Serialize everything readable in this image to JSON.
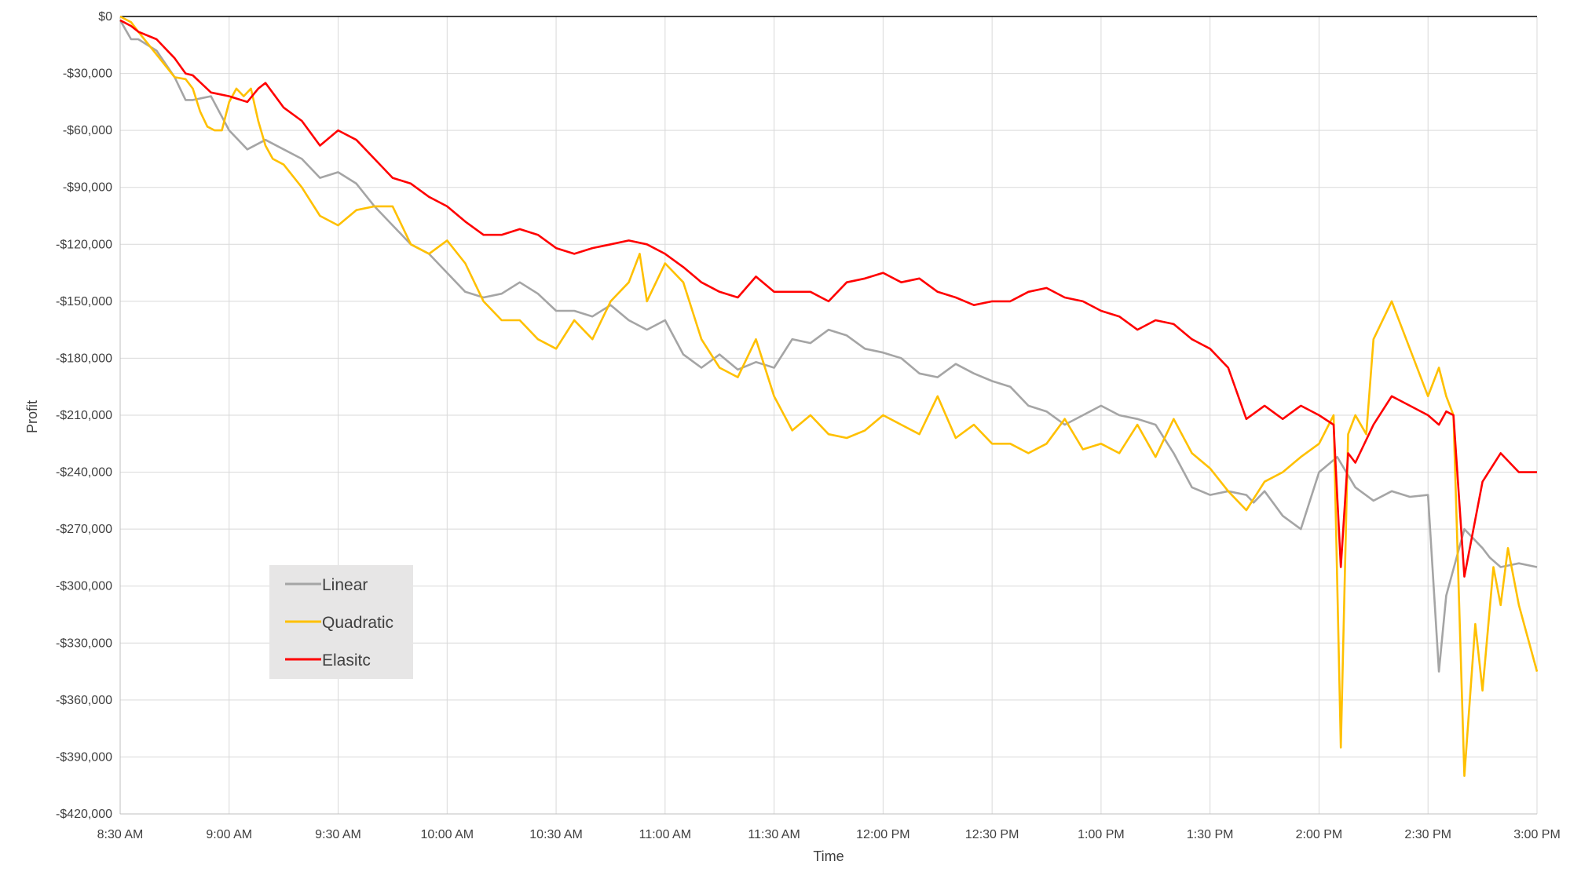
{
  "chart_data": {
    "type": "line",
    "title": "",
    "xlabel": "Time",
    "ylabel": "Profit",
    "ylim": [
      -420000,
      0
    ],
    "y_tick_values": [
      0,
      -30000,
      -60000,
      -90000,
      -120000,
      -150000,
      -180000,
      -210000,
      -240000,
      -270000,
      -300000,
      -330000,
      -360000,
      -390000,
      -420000
    ],
    "y_tick_labels": [
      "$0",
      "-$30,000",
      "-$60,000",
      "-$90,000",
      "-$120,000",
      "-$150,000",
      "-$180,000",
      "-$210,000",
      "-$240,000",
      "-$270,000",
      "-$300,000",
      "-$330,000",
      "-$360,000",
      "-$390,000",
      "-$420,000"
    ],
    "x_tick_labels": [
      "8:30 AM",
      "9:00 AM",
      "9:30 AM",
      "10:00 AM",
      "10:30 AM",
      "11:00 AM",
      "11:30 AM",
      "12:00 PM",
      "12:30 PM",
      "1:00 PM",
      "1:30 PM",
      "2:00 PM",
      "2:30 PM",
      "3:00 PM"
    ],
    "x_unit": "minutes after 8:30 AM",
    "xlim": [
      0,
      390
    ],
    "grid": true,
    "legend_position": "bottom-left",
    "series": [
      {
        "name": "Linear",
        "color": "#A5A5A5",
        "x": [
          0,
          3,
          5,
          10,
          15,
          18,
          20,
          25,
          30,
          35,
          40,
          45,
          50,
          55,
          60,
          65,
          70,
          75,
          80,
          85,
          90,
          95,
          100,
          105,
          110,
          115,
          120,
          125,
          130,
          135,
          140,
          145,
          150,
          155,
          160,
          165,
          170,
          175,
          180,
          185,
          190,
          195,
          200,
          205,
          210,
          215,
          220,
          225,
          230,
          235,
          240,
          245,
          250,
          255,
          260,
          265,
          270,
          275,
          280,
          285,
          290,
          295,
          300,
          305,
          310,
          312,
          315,
          320,
          325,
          330,
          335,
          340,
          345,
          350,
          355,
          360,
          363,
          365,
          370,
          375,
          377,
          380,
          385,
          390
        ],
        "values": [
          -2000,
          -12000,
          -12000,
          -18000,
          -32000,
          -44000,
          -44000,
          -42000,
          -60000,
          -70000,
          -65000,
          -70000,
          -75000,
          -85000,
          -82000,
          -88000,
          -100000,
          -110000,
          -120000,
          -125000,
          -135000,
          -145000,
          -148000,
          -146000,
          -140000,
          -146000,
          -155000,
          -155000,
          -158000,
          -152000,
          -160000,
          -165000,
          -160000,
          -178000,
          -185000,
          -178000,
          -186000,
          -182000,
          -185000,
          -170000,
          -172000,
          -165000,
          -168000,
          -175000,
          -177000,
          -180000,
          -188000,
          -190000,
          -183000,
          -188000,
          -192000,
          -195000,
          -205000,
          -208000,
          -215000,
          -210000,
          -205000,
          -210000,
          -212000,
          -215000,
          -230000,
          -248000,
          -252000,
          -250000,
          -252000,
          -256000,
          -250000,
          -263000,
          -270000,
          -240000,
          -232000,
          -248000,
          -255000,
          -250000,
          -253000,
          -252000,
          -345000,
          -305000,
          -270000,
          -280000,
          -285000,
          -290000,
          -288000,
          -290000
        ]
      },
      {
        "name": "Quadratic",
        "color": "#FFC000",
        "x": [
          0,
          3,
          5,
          10,
          15,
          18,
          20,
          22,
          24,
          26,
          28,
          30,
          32,
          34,
          36,
          38,
          40,
          42,
          45,
          50,
          55,
          60,
          65,
          70,
          75,
          80,
          85,
          90,
          95,
          100,
          105,
          110,
          115,
          120,
          125,
          130,
          135,
          140,
          143,
          145,
          148,
          150,
          155,
          160,
          165,
          170,
          175,
          180,
          185,
          190,
          195,
          200,
          205,
          210,
          215,
          220,
          225,
          230,
          235,
          240,
          245,
          250,
          255,
          260,
          265,
          270,
          275,
          280,
          285,
          290,
          295,
          300,
          305,
          310,
          315,
          320,
          325,
          330,
          334,
          336,
          338,
          340,
          343,
          345,
          350,
          355,
          360,
          363,
          365,
          367,
          370,
          373,
          375,
          378,
          380,
          382,
          385,
          390
        ],
        "values": [
          0,
          -3000,
          -8000,
          -20000,
          -32000,
          -33000,
          -38000,
          -50000,
          -58000,
          -60000,
          -60000,
          -45000,
          -38000,
          -42000,
          -38000,
          -55000,
          -68000,
          -75000,
          -78000,
          -90000,
          -105000,
          -110000,
          -102000,
          -100000,
          -100000,
          -120000,
          -125000,
          -118000,
          -130000,
          -150000,
          -160000,
          -160000,
          -170000,
          -175000,
          -160000,
          -170000,
          -150000,
          -140000,
          -125000,
          -150000,
          -138000,
          -130000,
          -140000,
          -170000,
          -185000,
          -190000,
          -170000,
          -200000,
          -218000,
          -210000,
          -220000,
          -222000,
          -218000,
          -210000,
          -215000,
          -220000,
          -200000,
          -222000,
          -215000,
          -225000,
          -225000,
          -230000,
          -225000,
          -212000,
          -228000,
          -225000,
          -230000,
          -215000,
          -232000,
          -212000,
          -230000,
          -238000,
          -250000,
          -260000,
          -245000,
          -240000,
          -232000,
          -225000,
          -210000,
          -385000,
          -220000,
          -210000,
          -220000,
          -170000,
          -150000,
          -175000,
          -200000,
          -185000,
          -200000,
          -210000,
          -400000,
          -320000,
          -355000,
          -290000,
          -310000,
          -280000,
          -310000,
          -345000
        ]
      },
      {
        "name": "Elasitc",
        "color": "#FF0000",
        "x": [
          0,
          3,
          5,
          10,
          15,
          18,
          20,
          25,
          30,
          35,
          38,
          40,
          45,
          50,
          55,
          60,
          65,
          70,
          75,
          80,
          85,
          90,
          95,
          100,
          105,
          110,
          115,
          120,
          125,
          130,
          135,
          140,
          145,
          150,
          155,
          160,
          165,
          170,
          175,
          180,
          185,
          190,
          195,
          200,
          205,
          210,
          215,
          220,
          225,
          230,
          235,
          240,
          245,
          250,
          255,
          260,
          265,
          270,
          275,
          280,
          285,
          290,
          295,
          300,
          305,
          310,
          315,
          320,
          325,
          330,
          334,
          336,
          338,
          340,
          345,
          350,
          355,
          360,
          363,
          365,
          367,
          370,
          375,
          380,
          385,
          390
        ],
        "values": [
          -2000,
          -5000,
          -8000,
          -12000,
          -22000,
          -30000,
          -31000,
          -40000,
          -42000,
          -45000,
          -38000,
          -35000,
          -48000,
          -55000,
          -68000,
          -60000,
          -65000,
          -75000,
          -85000,
          -88000,
          -95000,
          -100000,
          -108000,
          -115000,
          -115000,
          -112000,
          -115000,
          -122000,
          -125000,
          -122000,
          -120000,
          -118000,
          -120000,
          -125000,
          -132000,
          -140000,
          -145000,
          -148000,
          -137000,
          -145000,
          -145000,
          -145000,
          -150000,
          -140000,
          -138000,
          -135000,
          -140000,
          -138000,
          -145000,
          -148000,
          -152000,
          -150000,
          -150000,
          -145000,
          -143000,
          -148000,
          -150000,
          -155000,
          -158000,
          -165000,
          -160000,
          -162000,
          -170000,
          -175000,
          -185000,
          -212000,
          -205000,
          -212000,
          -205000,
          -210000,
          -215000,
          -290000,
          -230000,
          -235000,
          -215000,
          -200000,
          -205000,
          -210000,
          -215000,
          -208000,
          -210000,
          -295000,
          -245000,
          -230000,
          -240000,
          -240000
        ]
      }
    ]
  }
}
